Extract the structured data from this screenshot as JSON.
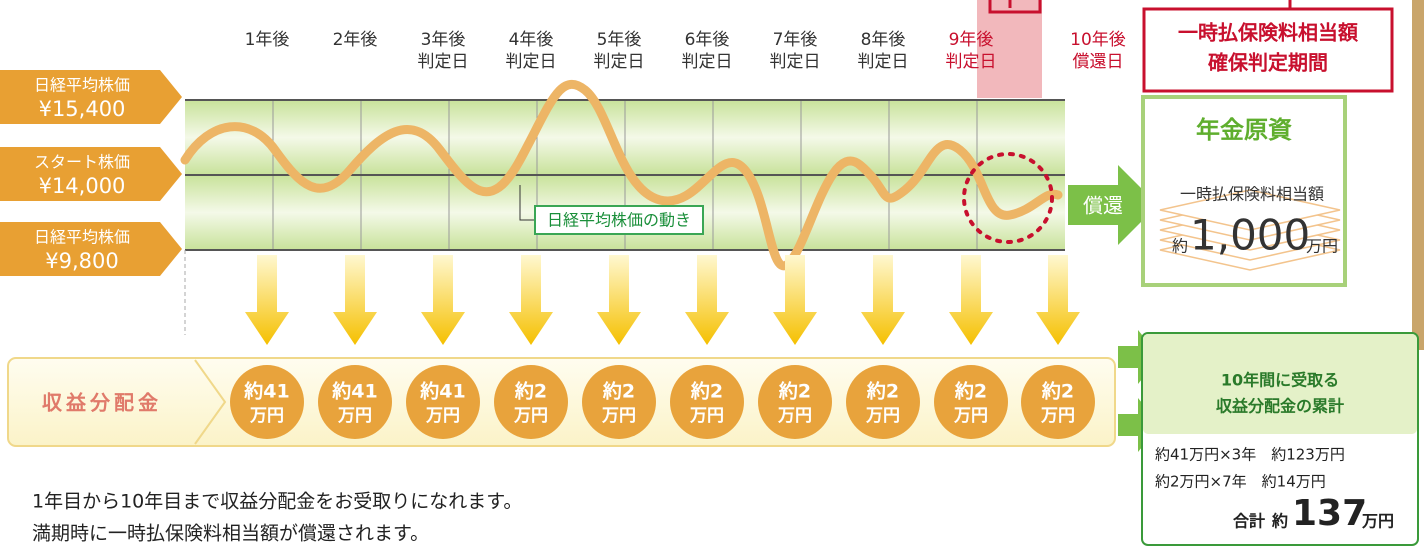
{
  "timeline": {
    "years": [
      [
        "1年後"
      ],
      [
        "2年後"
      ],
      [
        "3年後",
        "判定日"
      ],
      [
        "4年後",
        "判定日"
      ],
      [
        "5年後",
        "判定日"
      ],
      [
        "6年後",
        "判定日"
      ],
      [
        "7年後",
        "判定日"
      ],
      [
        "8年後",
        "判定日"
      ],
      [
        "9年後",
        "判定日"
      ],
      [
        "10年後",
        "償還日"
      ]
    ]
  },
  "period_box": [
    "一時払保険料相当額",
    "確保判定期間"
  ],
  "price_labels": [
    {
      "name": "日経平均株価",
      "price": "¥15,400"
    },
    {
      "name": "スタート株価",
      "price": "¥14,000"
    },
    {
      "name": "日経平均株価",
      "price": "¥9,800"
    }
  ],
  "chart_label": "日経平均株価の動き",
  "redemption": "償還",
  "pension_box": {
    "title": "年金原資",
    "label": "一時払保険料相当額",
    "prefix": "約",
    "amount": "1,000",
    "unit": "万円"
  },
  "distribution": {
    "label": "収益分配金",
    "payments": [
      {
        "amount": "約41",
        "unit": "万円"
      },
      {
        "amount": "約41",
        "unit": "万円"
      },
      {
        "amount": "約41",
        "unit": "万円"
      },
      {
        "amount": "約2",
        "unit": "万円"
      },
      {
        "amount": "約2",
        "unit": "万円"
      },
      {
        "amount": "約2",
        "unit": "万円"
      },
      {
        "amount": "約2",
        "unit": "万円"
      },
      {
        "amount": "約2",
        "unit": "万円"
      },
      {
        "amount": "約2",
        "unit": "万円"
      },
      {
        "amount": "約2",
        "unit": "万円"
      }
    ]
  },
  "total_box": {
    "title": [
      "10年間に受取る",
      "収益分配金の累計"
    ],
    "lines": [
      "約41万円×3年　約123万円",
      "約2万円×7年　約14万円"
    ],
    "total_label": "合計",
    "total_prefix": "約",
    "total_amount": "137",
    "total_unit": "万円"
  },
  "notes": [
    "1年目から10年目まで収益分配金をお受取りになれます。",
    "満期時に一時払保険料相当額が償還されます。"
  ]
}
